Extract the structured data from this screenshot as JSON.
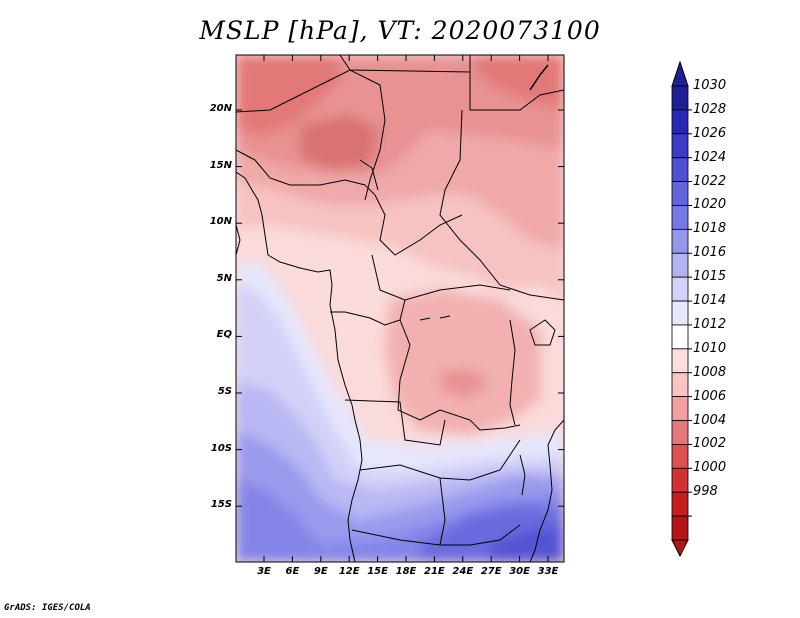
{
  "title": "MSLP [hPa], VT: 2020073100",
  "lat_labels": [
    "20N",
    "15N",
    "10N",
    "5N",
    "EQ",
    "5S",
    "10S",
    "15S"
  ],
  "lon_labels": [
    "3E",
    "6E",
    "9E",
    "12E",
    "15E",
    "18E",
    "21E",
    "24E",
    "27E",
    "30E",
    "33E"
  ],
  "colorbar": {
    "labels": [
      "1030",
      "1028",
      "1026",
      "1024",
      "1022",
      "1020",
      "1018",
      "1016",
      "1015",
      "1014",
      "1012",
      "1010",
      "1008",
      "1006",
      "1004",
      "1002",
      "1000",
      "998"
    ],
    "colors": [
      "#1e1e96",
      "#2828b4",
      "#3c3cc8",
      "#5050d2",
      "#6464dc",
      "#7878e6",
      "#9696ec",
      "#b4b4f2",
      "#d2d2f8",
      "#e8e8fc",
      "#ffffff",
      "#fcdcdc",
      "#f8c4c4",
      "#f0a0a0",
      "#e67878",
      "#dc5050",
      "#d23232",
      "#c81e1e",
      "#b41414"
    ],
    "cap_colors": {
      "top": "#1e1e96",
      "bottom": "#b41414"
    }
  },
  "credit": "GrADS: IGES/COLA"
}
